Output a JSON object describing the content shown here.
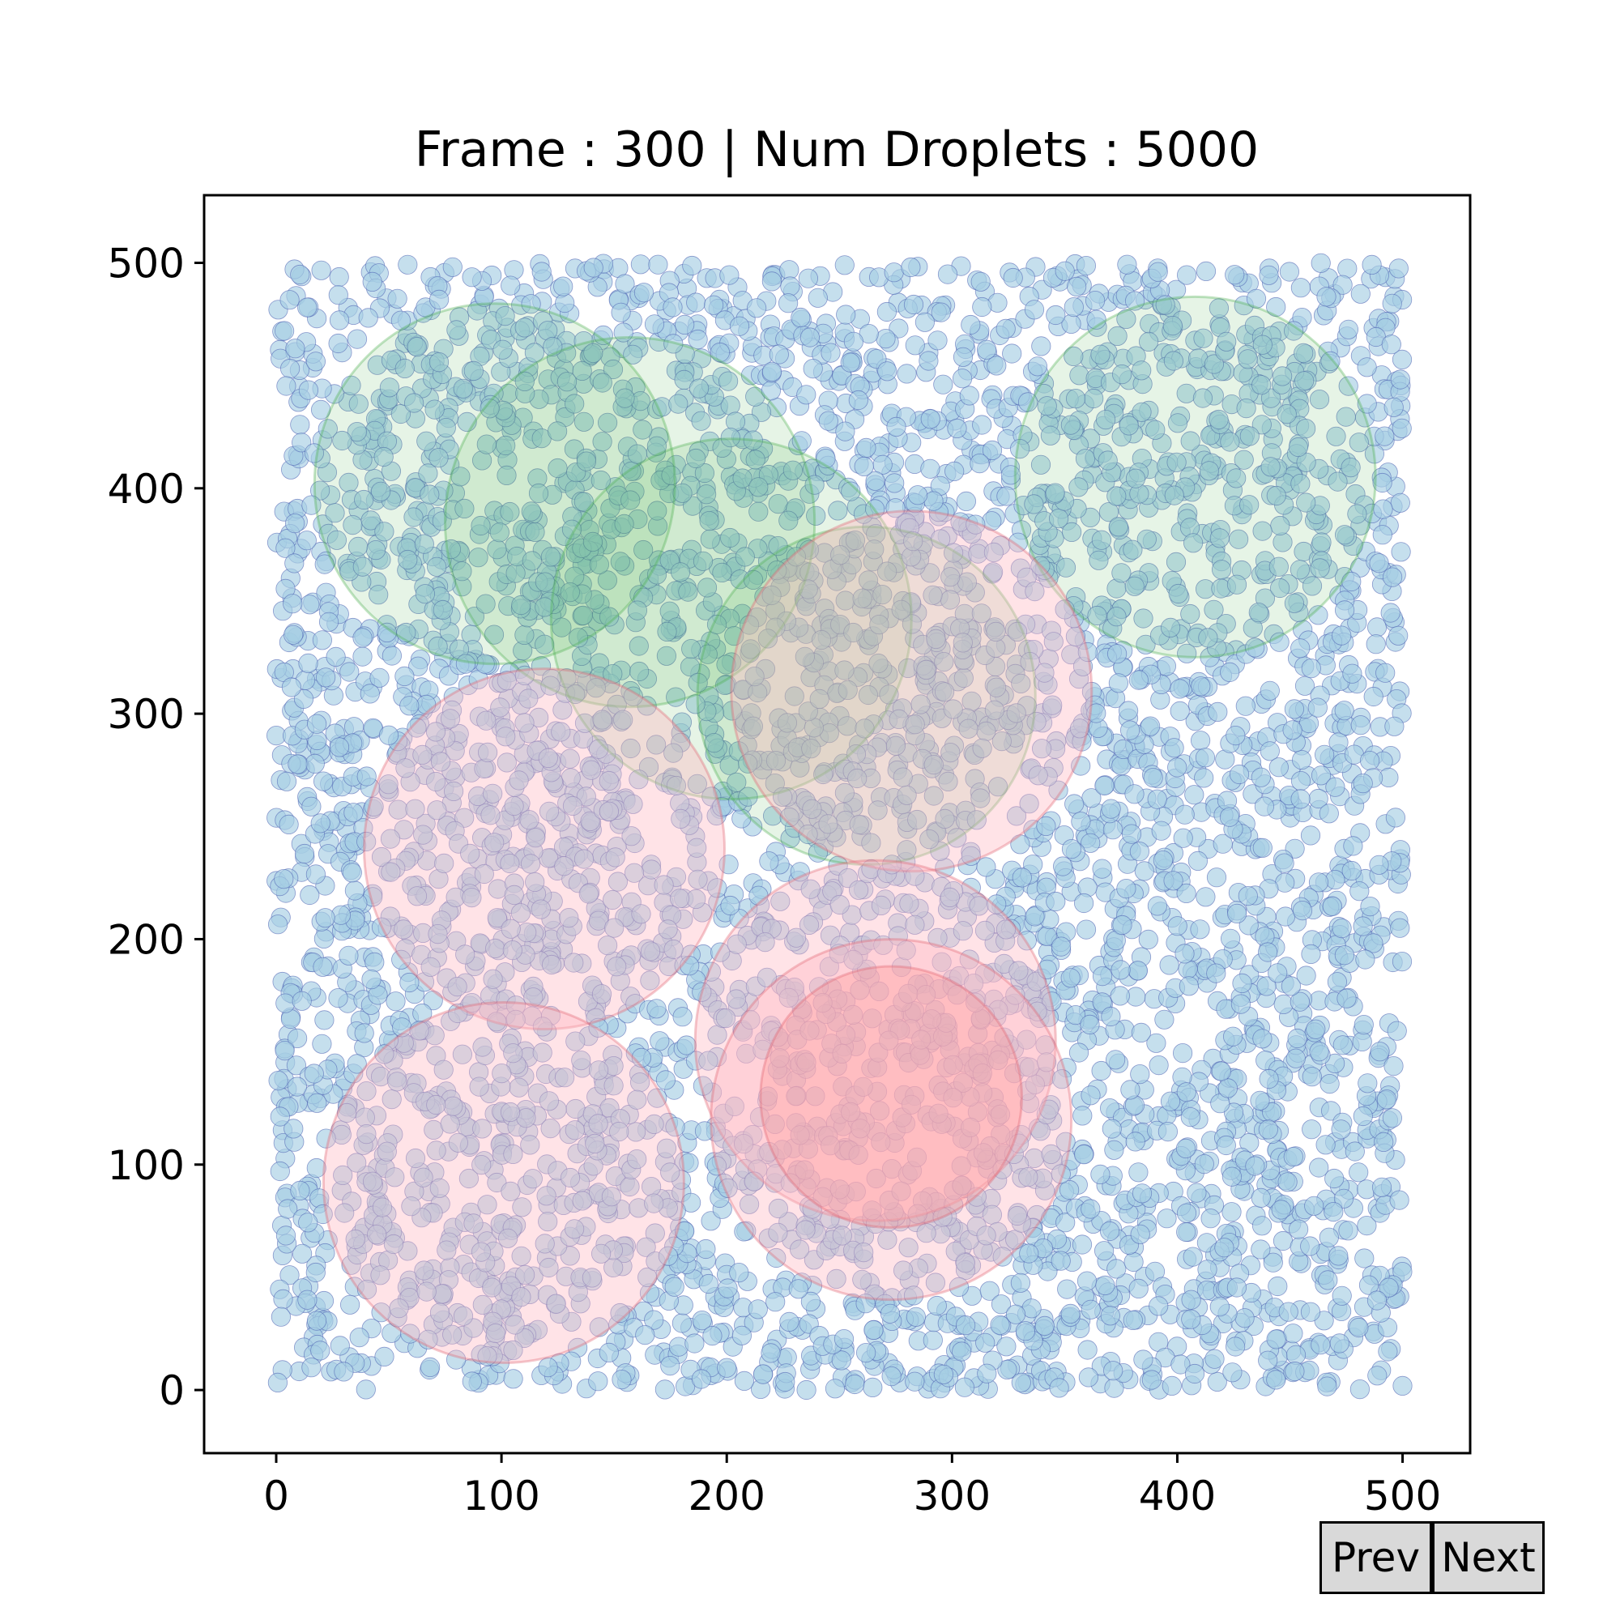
{
  "chart_data": {
    "type": "scatter",
    "title": "Frame : 300 | Num Droplets : 5000",
    "xlabel": "",
    "ylabel": "",
    "xlim": [
      -32,
      530
    ],
    "ylim": [
      -28,
      530
    ],
    "xticks": [
      "0",
      "100",
      "200",
      "300",
      "400",
      "500"
    ],
    "yticks": [
      "0",
      "100",
      "200",
      "300",
      "400",
      "500"
    ],
    "grid": false,
    "num_droplets": 5000,
    "droplet_color": "#a6cee3",
    "droplet_edge_color": "#4a5db0",
    "circles": [
      {
        "kind": "green",
        "cx": 97,
        "cy": 402,
        "r": 80
      },
      {
        "kind": "green",
        "cx": 157,
        "cy": 385,
        "r": 82
      },
      {
        "kind": "green",
        "cx": 202,
        "cy": 342,
        "r": 80
      },
      {
        "kind": "green",
        "cx": 262,
        "cy": 308,
        "r": 75
      },
      {
        "kind": "green",
        "cx": 408,
        "cy": 405,
        "r": 80
      },
      {
        "kind": "red",
        "cx": 282,
        "cy": 310,
        "r": 80
      },
      {
        "kind": "red",
        "cx": 119,
        "cy": 240,
        "r": 80
      },
      {
        "kind": "red",
        "cx": 266,
        "cy": 155,
        "r": 80
      },
      {
        "kind": "red",
        "cx": 101,
        "cy": 92,
        "r": 80
      },
      {
        "kind": "red",
        "cx": 273,
        "cy": 120,
        "r": 80
      },
      {
        "kind": "redcore",
        "cx": 273,
        "cy": 130,
        "r": 58
      }
    ],
    "colors": {
      "green_fill": "#4caf50",
      "red_fill": "#ffb6c1",
      "redcore_fill": "#ff9999",
      "red_edge": "#e06070"
    }
  },
  "controls": {
    "prev_label": "Prev",
    "next_label": "Next"
  }
}
